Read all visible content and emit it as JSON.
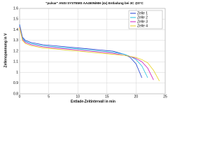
{
  "chart_data": {
    "type": "line",
    "title": "\"pulsar\" ANSI SYSTEMS AA450NiMH (4x) Entladung bei 3C @0°C",
    "x_label": "Entlade-Zeitintervall in min",
    "y_label": "Zellenspannung in V",
    "x": [
      0,
      0.5,
      1,
      2,
      4,
      6,
      8,
      10,
      12,
      14,
      16,
      18,
      19,
      20,
      21,
      22,
      23,
      24
    ],
    "series": [
      {
        "name": "Zelle 1",
        "color": "#1f3fd0",
        "values": [
          1.45,
          1.33,
          1.3,
          1.28,
          1.26,
          1.25,
          1.24,
          1.23,
          1.22,
          1.21,
          1.2,
          1.17,
          1.14,
          1.08,
          0.95,
          null,
          null,
          null
        ]
      },
      {
        "name": "Zelle 2",
        "color": "#20c0e0",
        "values": [
          1.44,
          1.32,
          1.29,
          1.27,
          1.25,
          1.24,
          1.23,
          1.22,
          1.21,
          1.2,
          1.19,
          1.17,
          1.15,
          1.12,
          1.06,
          0.95,
          null,
          null
        ]
      },
      {
        "name": "Zelle 3",
        "color": "#d020c0",
        "values": [
          1.43,
          1.31,
          1.28,
          1.26,
          1.24,
          1.23,
          1.22,
          1.21,
          1.2,
          1.19,
          1.18,
          1.16,
          1.15,
          1.13,
          1.1,
          1.04,
          0.93,
          null
        ]
      },
      {
        "name": "Zelle 4",
        "color": "#e8d020",
        "values": [
          1.42,
          1.3,
          1.27,
          1.25,
          1.23,
          1.22,
          1.21,
          1.2,
          1.19,
          1.18,
          1.17,
          1.16,
          1.15,
          1.14,
          1.12,
          1.09,
          1.02,
          0.92
        ]
      }
    ],
    "xlim": [
      0,
      25
    ],
    "xticks": [
      0,
      5,
      10,
      15,
      20,
      25
    ],
    "ylim": [
      0.8,
      1.6
    ],
    "yticks": [
      0.8,
      0.9,
      1,
      1.1,
      1.2,
      1.3,
      1.4,
      1.5,
      1.6
    ],
    "grid": true,
    "legend": "top-right"
  }
}
